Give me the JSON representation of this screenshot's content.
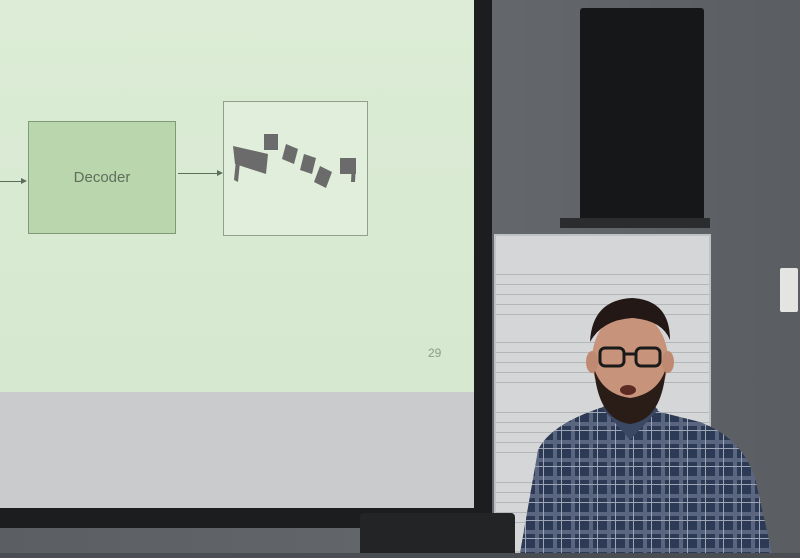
{
  "slide": {
    "decoder_label": "Decoder",
    "page_number": "29"
  },
  "colors": {
    "slide_background": "#dcecd6",
    "decoder_fill": "#b9d6ad",
    "shape_gray": "#6b6b6b",
    "shirt_plaid": "#2d3a55"
  }
}
